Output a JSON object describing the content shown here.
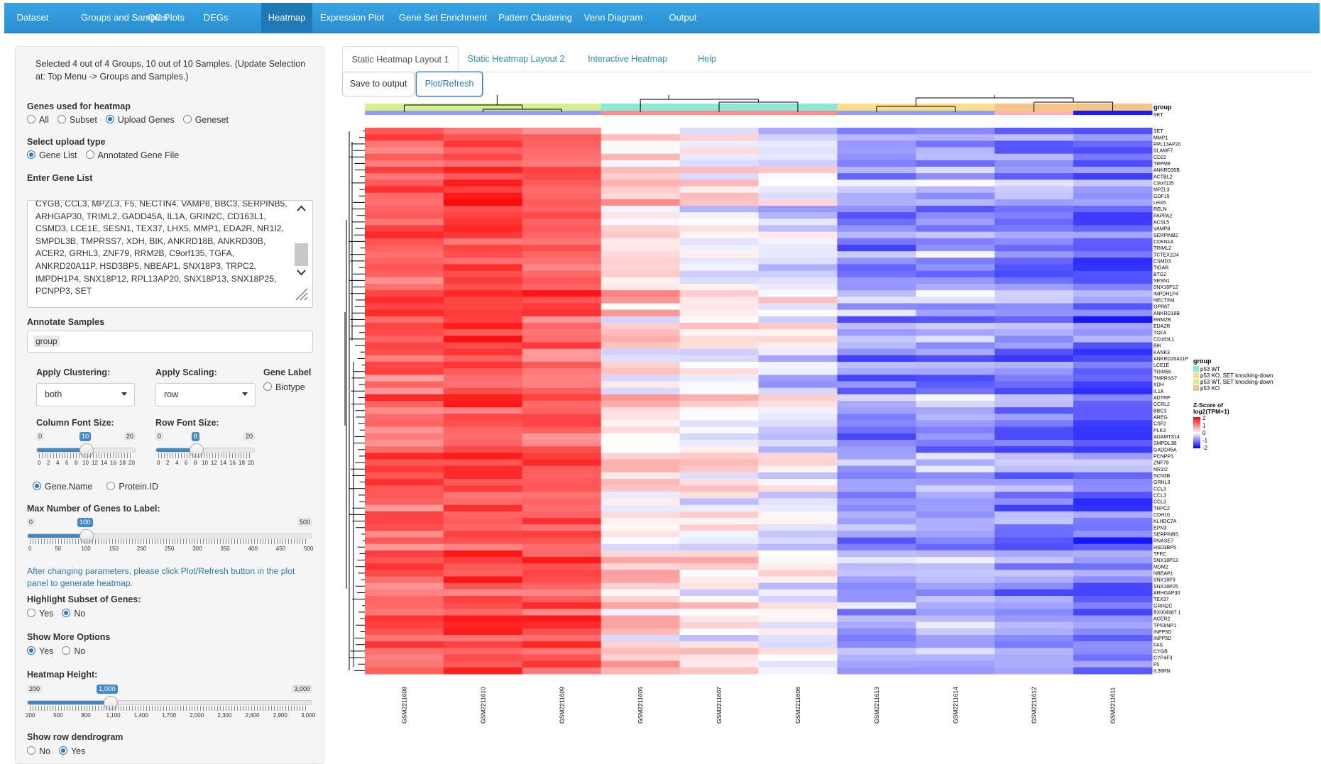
{
  "nav": {
    "items": [
      "Dataset",
      "Groups and Samples",
      "QC Plots",
      "DEGs",
      "Heatmap",
      "Expression Plot",
      "Gene Set Enrichment",
      "Pattern Clustering",
      "Venn Diagram",
      "Output"
    ],
    "active": "Heatmap",
    "color": "#2a8fd1"
  },
  "sidebar": {
    "selection_text": "Selected 4 out of 4 Groups, 10 out of 10 Samples. (Update Selection at: Top Menu -> Groups and Samples.)",
    "genes_label": "Genes used for heatmap",
    "genes_options": [
      "All",
      "Subset",
      "Upload Genes",
      "Geneset"
    ],
    "genes_selected": "Upload Genes",
    "upload_label": "Select upload type",
    "upload_options": [
      "Gene List",
      "Annotated Gene File"
    ],
    "upload_selected": "Gene List",
    "gene_list_label": "Enter Gene List",
    "gene_list_lines": [
      "CYGB, CCL3, MPZL3, F5, NECTIN4, VAMP8, BBC3, SERPINB5,",
      "ARHGAP30, TRIML2, GADD45A, IL1A, GRIN2C, CD163L1,",
      "CSMD3, LCE1E, SESN1, TEX37, LHX5, MMP1, EDA2R, NR1I2,",
      "SMPDL3B, TMPRSS7, XDH, BIK, ANKRD18B, ANKRD30B,",
      "ACER2, GRHL3, ZNF79, RRM2B, C9orf135, TGFA,",
      "ANKRD20A11P, HSD3BP5, NBEAP1, SNX18P3, TRPC2,",
      "IMPDH1P4, SNX18P12, RPL13AP20, SNX18P13, SNX18P25,",
      "PCNPP3, SET"
    ],
    "annotate_label": "Annotate Samples",
    "annotate_tag": "group",
    "clustering_label": "Apply Clustering:",
    "clustering_value": "both",
    "scaling_label": "Apply Scaling:",
    "scaling_value": "row",
    "gene_label_title": "Gene Label",
    "gene_label_option": "Biotype",
    "col_font_label": "Column Font Size:",
    "col_font": {
      "min": "0",
      "max": "20",
      "value": "10",
      "fraction": 0.5
    },
    "row_font_label": "Row Font Size:",
    "row_font": {
      "min": "0",
      "max": "20",
      "value": "8",
      "fraction": 0.4
    },
    "font_ticks": [
      "0",
      "2",
      "4",
      "6",
      "8",
      "10",
      "12",
      "14",
      "16",
      "18",
      "20"
    ],
    "id_options": [
      "Gene.Name",
      "Protein.ID"
    ],
    "id_selected": "Gene.Name",
    "max_genes_label": "Max Number of Genes to Label:",
    "max_genes": {
      "min": "0",
      "max": "500",
      "value": "100",
      "fraction": 0.2
    },
    "max_genes_ticks": [
      "0",
      "50",
      "100",
      "150",
      "200",
      "250",
      "300",
      "350",
      "400",
      "450",
      "500"
    ],
    "info_text": "After changing parameters, please click Plot/Refresh button in the plot panel to generate heatmap.",
    "highlight_label": "Highlight Subset of Genes:",
    "highlight_options": [
      "Yes",
      "No"
    ],
    "highlight_selected": "No",
    "more_label": "Show More Options",
    "more_options": [
      "Yes",
      "No"
    ],
    "more_selected": "Yes",
    "height_label": "Heatmap Height:",
    "height": {
      "min": "200",
      "max": "3,000",
      "value": "1,000",
      "fraction": 0.2857
    },
    "height_ticks": [
      "200",
      "500",
      "800",
      "1,100",
      "1,400",
      "1,700",
      "2,000",
      "2,300",
      "2,600",
      "2,900",
      "3,000"
    ],
    "dendro_label": "Show row dendrogram",
    "dendro_options": [
      "No",
      "Yes"
    ],
    "dendro_selected": "Yes"
  },
  "tabs": [
    "Static Heatmap Layout 1",
    "Static Heatmap Layout 2",
    "Interactive Heatmap",
    "Help"
  ],
  "active_tab": "Static Heatmap Layout 1",
  "buttons": {
    "save": "Save to output",
    "plot": "Plot/Refresh"
  },
  "chart_data": {
    "type": "heatmap",
    "samples": [
      "GSM2211608",
      "GSM2211610",
      "GSM2211609",
      "GSM2211605",
      "GSM2211607",
      "GSM2211606",
      "GSM2211613",
      "GSM2211614",
      "GSM2211612",
      "GSM2211611"
    ],
    "sample_groups": [
      "p53 WT, SET knocking-down",
      "p53 WT, SET knocking-down",
      "p53 WT, SET knocking-down",
      "p53 WT",
      "p53 WT",
      "p53 WT",
      "p53 KO, SET knocking-down",
      "p53 KO, SET knocking-down",
      "p53 KO",
      "p53 KO"
    ],
    "genes": [
      "SET",
      "MMP1",
      "RPL13AP20",
      "SLAMF7",
      "CD22",
      "TRPM8",
      "ANKRD30B",
      "ACTBL2",
      "C9orf135",
      "MPZL3",
      "GDF15",
      "LHX5",
      "RELN",
      "PAPPA2",
      "ACSL5",
      "VAMP8",
      "SERPINB2",
      "CDKN1A",
      "TRIML2",
      "TCTEX1D4",
      "CSMD3",
      "TIGAR",
      "BTG2",
      "SESN1",
      "SNX18P12",
      "IMPDH1P4",
      "NECTIN4",
      "GPR87",
      "ANKRD18B",
      "RRM2B",
      "EDA2R",
      "TGFA",
      "CD163L1",
      "BIK",
      "KANK3",
      "ANKRD20A11P",
      "LCE1E",
      "TRIM55",
      "TMPRSS7",
      "XDH",
      "IL1A",
      "ADTRP",
      "CCRL2",
      "BBC3",
      "AREG",
      "CSF2",
      "PLK3",
      "ADAMTS14",
      "SMPDL3B",
      "GADD45A",
      "PCNPP3",
      "ZNF79",
      "NR1I2",
      "SCN3B",
      "GRHL3",
      "CCL3",
      "CCL3",
      "CCL3",
      "TRPC2",
      "CDH10",
      "KLHDC7A",
      "EPN3",
      "SERPINB5",
      "RNASE7",
      "HSD3BP5",
      "TFEC",
      "SNX18P13",
      "MDM2",
      "NBEAP1",
      "SNX18P3",
      "SNX18P25",
      "ARHGAP30",
      "TEX37",
      "GRIN2C",
      "BX004987.1",
      "ACER2",
      "TP53INP1",
      "INPP5D",
      "INPP5D",
      "FAS",
      "CYGB",
      "CYP4F3",
      "F5",
      "IL36RN"
    ],
    "group_legend_title": "group",
    "group_legend": [
      {
        "name": "p53 WT",
        "color": "#8de8d6"
      },
      {
        "name": "p53 KO, SET knocking-down",
        "color": "#f8e08a"
      },
      {
        "name": "p53 WT, SET knocking-down",
        "color": "#d6ef8f"
      },
      {
        "name": "p53 KO",
        "color": "#f5c688"
      }
    ],
    "group_track_label": "group",
    "row_track_label": "SET",
    "scale_title": "Z-Score of log2(TPM+1)",
    "scale_ticks": [
      "2",
      "1",
      "0",
      "-1",
      "-2"
    ],
    "color_high": "#ff0000",
    "color_mid": "#ffffff",
    "color_low": "#0000ff",
    "column_means": [
      1.25,
      1.45,
      1.3,
      0.25,
      0.1,
      -0.15,
      -0.8,
      -0.7,
      -0.9,
      -1.1
    ]
  }
}
